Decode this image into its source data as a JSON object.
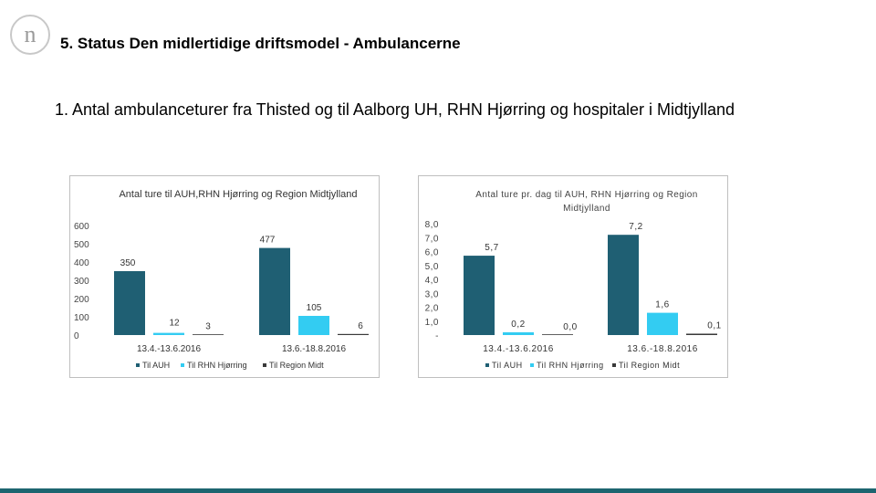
{
  "slide": {
    "logo_glyph": "n",
    "title": "5. Status Den midlertidige driftsmodel - Ambulancerne",
    "subtitle": "1. Antal ambulanceturer fra Thisted og til Aalborg UH, RHN Hjørring og hospitaler i Midtjylland"
  },
  "colors": {
    "series": [
      "#1f5f73",
      "#33ccf2",
      "#3a3a3a"
    ],
    "accent_bar": "#1d6570"
  },
  "chart_data": [
    {
      "type": "bar",
      "title": "Antal ture til AUH,RHN Hjørring og Region Midtjylland",
      "categories": [
        "13.4.-13.6.2016",
        "13.6.-18.8.2016"
      ],
      "series": [
        {
          "name": "Til AUH",
          "values": [
            350,
            477
          ],
          "labels": [
            "350",
            "477"
          ]
        },
        {
          "name": "Til RHN Hjørring",
          "values": [
            12,
            105
          ],
          "labels": [
            "12",
            "105"
          ]
        },
        {
          "name": "Til Region Midt",
          "values": [
            3,
            6
          ],
          "labels": [
            "3",
            "6"
          ]
        }
      ],
      "yticks": [
        "0",
        "100",
        "200",
        "300",
        "400",
        "500",
        "600"
      ],
      "ylim": [
        0,
        600
      ],
      "grid": false,
      "legend": "bottom"
    },
    {
      "type": "bar",
      "title": "Antal ture pr. dag til AUH, RHN Hjørring og Region Midtjylland",
      "categories": [
        "13.4.-13.6.2016",
        "13.6.-18.8.2016"
      ],
      "series": [
        {
          "name": "Til AUH",
          "values": [
            5.7,
            7.2
          ],
          "labels": [
            "5,7",
            "7,2"
          ]
        },
        {
          "name": "Til RHN Hjørring",
          "values": [
            0.2,
            1.6
          ],
          "labels": [
            "0,2",
            "1,6"
          ]
        },
        {
          "name": "Til Region Midt",
          "values": [
            0.0,
            0.1
          ],
          "labels": [
            "0,0",
            "0,1"
          ]
        }
      ],
      "yticks": [
        "-",
        "1,0",
        "2,0",
        "3,0",
        "4,0",
        "5,0",
        "6,0",
        "7,0",
        "8,0"
      ],
      "ylim": [
        0,
        8
      ],
      "grid": false,
      "legend": "bottom"
    }
  ]
}
